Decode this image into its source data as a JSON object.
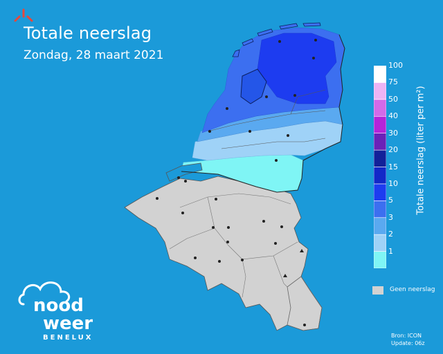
{
  "header": {
    "title": "Totale neerslag",
    "subtitle": "Zondag, 28 maart 2021"
  },
  "legend": {
    "title": "Totale neerslag (liter per m²)",
    "levels": [
      {
        "label": "1",
        "color": "#7ff5f5"
      },
      {
        "label": "2",
        "color": "#9fd2f7"
      },
      {
        "label": "3",
        "color": "#5aa9f0"
      },
      {
        "label": "5",
        "color": "#3c6ff0"
      },
      {
        "label": "10",
        "color": "#1d3cf0"
      },
      {
        "label": "15",
        "color": "#1228c8"
      },
      {
        "label": "20",
        "color": "#122199"
      },
      {
        "label": "30",
        "color": "#6a22b8"
      },
      {
        "label": "40",
        "color": "#b424d9"
      },
      {
        "label": "50",
        "color": "#d36ae8"
      },
      {
        "label": "75",
        "color": "#ecb4f4"
      },
      {
        "label": "100",
        "color": "#ffffff"
      }
    ],
    "no_precip_label": "Geen neerslag",
    "no_precip_color": "#d2d2d2"
  },
  "footer": {
    "source": "Bron: ICON",
    "update": "Update: 06z"
  },
  "logo": {
    "line1": "nood",
    "line2": "weer",
    "sub": "BENELUX"
  }
}
